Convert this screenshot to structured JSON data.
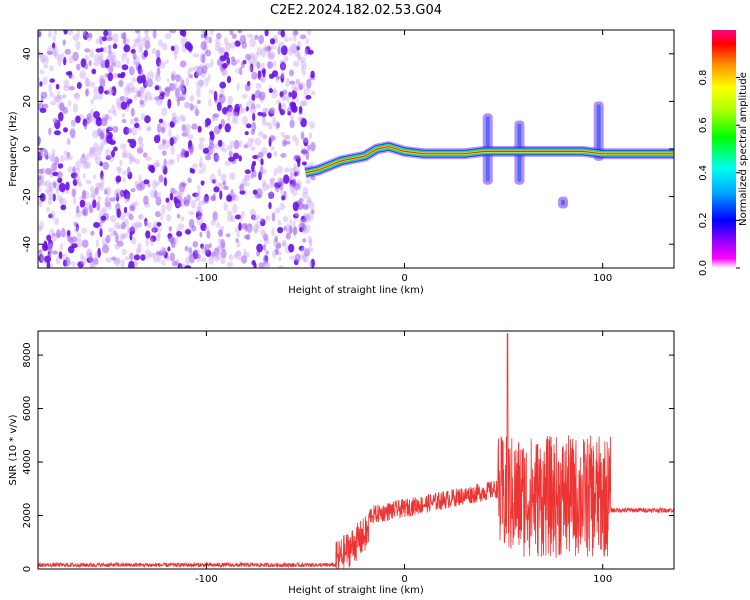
{
  "title": "C2E2.2024.182.02.53.G04",
  "colors": {
    "axis": "#000000",
    "snr_line": "#ee3333",
    "spectrogram_noise": "#7a2cf0",
    "trace_core": "#e83030"
  },
  "chart_data": [
    {
      "type": "heatmap",
      "xlabel": "Height of straight line (km)",
      "ylabel": "Frequency (Hz)",
      "xlim": [
        -185,
        136
      ],
      "ylim": [
        -50,
        50
      ],
      "xticks": [
        -100,
        0,
        100
      ],
      "yticks": [
        -40,
        -20,
        0,
        20,
        40
      ],
      "colorbar": {
        "label": "Normalized spectral amplitude",
        "range": [
          0,
          1
        ],
        "ticks": [
          "0.0",
          "0.2",
          "0.4",
          "0.6",
          "0.8"
        ],
        "colormap": "hsv"
      },
      "noise_region": {
        "x_range": [
          -185,
          -46
        ],
        "freq_range": [
          -50,
          50
        ]
      },
      "trace": {
        "x": [
          -50,
          -44,
          -38,
          -32,
          -26,
          -20,
          -14,
          -8,
          0,
          10,
          20,
          30,
          40,
          50,
          60,
          70,
          80,
          90,
          100,
          110,
          120,
          136
        ],
        "freq": [
          -10,
          -9,
          -7,
          -5,
          -4,
          -3,
          0,
          1,
          -1,
          -2,
          -2,
          -2,
          -1,
          -1,
          -1,
          -1,
          -1,
          -1,
          -2,
          -2,
          -2,
          -2
        ]
      },
      "side_blobs": [
        {
          "x": 42,
          "freq_range": [
            -15,
            15
          ]
        },
        {
          "x": 58,
          "freq_range": [
            -15,
            12
          ]
        },
        {
          "x": 80,
          "freq_range": [
            -25,
            -20
          ]
        },
        {
          "x": 98,
          "freq_range": [
            -5,
            20
          ]
        }
      ]
    },
    {
      "type": "line",
      "xlabel": "Height of straight line (km)",
      "ylabel": "SNR (10 * v/v)",
      "xlim": [
        -185,
        136
      ],
      "ylim": [
        0,
        8900
      ],
      "xticks": [
        -100,
        0,
        100
      ],
      "yticks": [
        0,
        2000,
        4000,
        6000,
        8000
      ],
      "segments": [
        {
          "x_range": [
            -185,
            -35
          ],
          "base": 150,
          "noise": 80
        },
        {
          "x_range": [
            -35,
            -18
          ],
          "base_start": 300,
          "base_end": 1400,
          "noise": 700
        },
        {
          "x_range": [
            -18,
            47
          ],
          "base_start": 2000,
          "base_end": 3000,
          "noise": 350
        },
        {
          "x_range": [
            47,
            104
          ],
          "base": 2700,
          "noise": 2300
        },
        {
          "x_range": [
            104,
            136
          ],
          "base": 2200,
          "noise": 90
        }
      ],
      "peak": {
        "x": 52,
        "y": 8800
      }
    }
  ]
}
